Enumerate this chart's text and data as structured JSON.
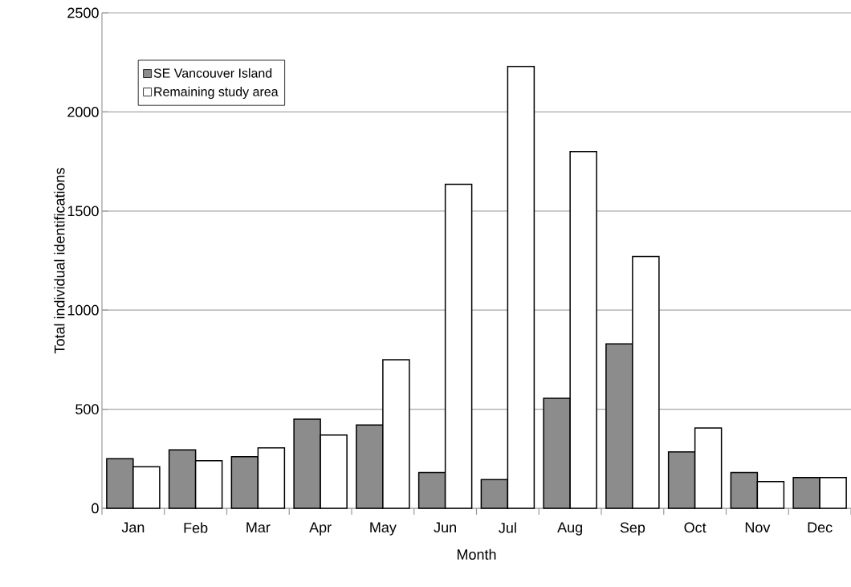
{
  "chart_data": {
    "type": "bar",
    "xlabel": "Month",
    "ylabel": "Total individual identifications",
    "categories": [
      "Jan",
      "Feb",
      "Mar",
      "Apr",
      "May",
      "Jun",
      "Jul",
      "Aug",
      "Sep",
      "Oct",
      "Nov",
      "Dec"
    ],
    "series": [
      {
        "name": "SE Vancouver Island",
        "color": "#8c8c8c",
        "values": [
          250,
          295,
          260,
          450,
          420,
          180,
          145,
          555,
          830,
          285,
          180,
          155
        ]
      },
      {
        "name": "Remaining study area",
        "color": "#ffffff",
        "values": [
          210,
          240,
          305,
          370,
          750,
          1635,
          2230,
          1800,
          1270,
          405,
          135,
          155
        ]
      }
    ],
    "ylim": [
      0,
      2500
    ],
    "yticks": [
      0,
      500,
      1000,
      1500,
      2000,
      2500
    ],
    "grid": "y",
    "legend": "top left"
  }
}
